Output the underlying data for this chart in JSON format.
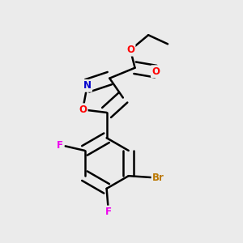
{
  "background_color": "#ebebeb",
  "bond_color": "#000000",
  "atom_colors": {
    "O": "#ff0000",
    "N": "#0000cd",
    "F": "#ee00ee",
    "Br": "#bb7700",
    "C": "#000000"
  },
  "figsize": [
    3.0,
    3.0
  ],
  "dpi": 100
}
